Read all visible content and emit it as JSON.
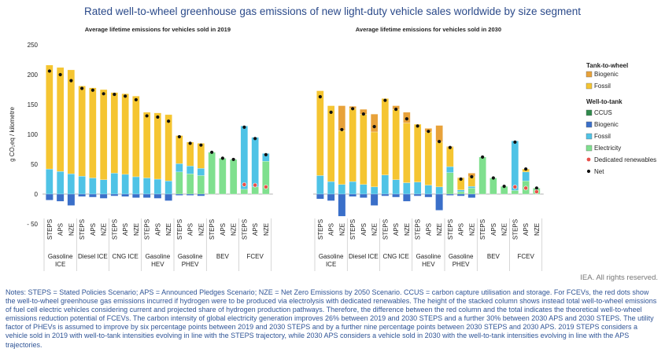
{
  "title": "Rated well-to-wheel greenhouse gas emissions of new light-duty vehicle sales worldwide by size segment",
  "credit": "IEA. All rights reserved.",
  "notes": "Notes: STEPS = Stated Policies Scenario; APS = Announced Pledges Scenario; NZE = Net Zero Emissions by 2050 Scenario. CCUS = carbon capture utilisation and storage. For FCEVs, the red dots show the well-to-wheel greenhouse gas emissions incurred if hydrogen were to be produced via electrolysis with dedicated renewables. The height of the stacked column shows instead total well-to-wheel emissions of fuel cell electric vehicles considering current and projected share of hydrogen production pathways. Therefore, the difference between the red column and the total indicates the theoretical well-to-wheel emissions reduction potential of FCEVs. The carbon intensity of global electricity generation improves 26% between 2019 and 2030 STEPS and a further 30% between 2030 APS and 2030 STEPS. The utility factor of PHEVs is assumed to improve by six percentage points between 2019 and 2030 STEPS and by a further nine percentage points between 2030 STEPS and 2030 APS. 2019 STEPS considers a vehicle sold in 2019 with well-to-tank intensities evolving in line with the STEPS trajectory, while 2030 APS considers a vehicle sold in 2030 with the well-to-tank intensities evolving in line with the APS trajectories.",
  "colors": {
    "ttw_biogenic": "#e8a23a",
    "ttw_fossil": "#f5c531",
    "wtt_ccus": "#2f8a4c",
    "wtt_biogenic": "#3a6fc9",
    "wtt_fossil": "#4fc3e6",
    "wtt_electricity": "#7fe08e",
    "net": "#111111",
    "dedicated": "#e8504a"
  },
  "chart_data": {
    "type": "bar",
    "ylabel": "g CO₂eq / kilometre",
    "ylim": [
      -50,
      250
    ],
    "yticks": [
      -50,
      0,
      50,
      100,
      150,
      200,
      250
    ],
    "scenarios": [
      "STEPS",
      "APS",
      "NZE"
    ],
    "groups": [
      "Gasoline ICE",
      "Diesel ICE",
      "CNG ICE",
      "Gasoline HEV",
      "Gasoline PHEV",
      "BEV",
      "FCEV"
    ],
    "legend": {
      "ttw_title": "Tank-to-wheel",
      "ttw_items": [
        {
          "key": "ttw_biogenic",
          "label": "Biogenic"
        },
        {
          "key": "ttw_fossil",
          "label": "Fossil"
        }
      ],
      "wtt_title": "Well-to-tank",
      "wtt_items": [
        {
          "key": "wtt_ccus",
          "label": "CCUS"
        },
        {
          "key": "wtt_biogenic",
          "label": "Biogenic"
        },
        {
          "key": "wtt_fossil",
          "label": "Fossil"
        },
        {
          "key": "wtt_electricity",
          "label": "Electricity"
        }
      ],
      "dedicated_label": "Dedicated renewables",
      "net_label": "Net"
    },
    "panels": [
      {
        "title": "Average lifetime emissions for vehicles sold in 2019",
        "bars": [
          {
            "wtt_fossil": 42,
            "ttw_fossil": 174,
            "ttw_biogenic": 0,
            "neg_biogenic": -10,
            "net": 206
          },
          {
            "wtt_fossil": 38,
            "ttw_fossil": 174,
            "ttw_biogenic": 0,
            "neg_biogenic": -12,
            "net": 200
          },
          {
            "wtt_fossil": 34,
            "ttw_fossil": 174,
            "ttw_biogenic": 0,
            "neg_biogenic": -19,
            "net": 190
          },
          {
            "wtt_fossil": 30,
            "ttw_fossil": 151,
            "ttw_biogenic": 0,
            "neg_biogenic": -4,
            "net": 177
          },
          {
            "wtt_fossil": 27,
            "ttw_fossil": 151,
            "ttw_biogenic": 0,
            "neg_biogenic": -5,
            "net": 174
          },
          {
            "wtt_fossil": 24,
            "ttw_fossil": 151,
            "ttw_biogenic": 0,
            "neg_biogenic": -7,
            "net": 168
          },
          {
            "wtt_fossil": 35,
            "ttw_fossil": 135,
            "ttw_biogenic": 0,
            "neg_biogenic": -3,
            "net": 167
          },
          {
            "wtt_fossil": 33,
            "ttw_fossil": 135,
            "ttw_biogenic": 0,
            "neg_biogenic": -4,
            "net": 164
          },
          {
            "wtt_fossil": 29,
            "ttw_fossil": 135,
            "ttw_biogenic": 0,
            "neg_biogenic": -6,
            "net": 158
          },
          {
            "wtt_fossil": 27,
            "ttw_fossil": 110,
            "ttw_biogenic": 0,
            "neg_biogenic": -6,
            "net": 131
          },
          {
            "wtt_fossil": 25,
            "ttw_fossil": 111,
            "ttw_biogenic": 0,
            "neg_biogenic": -7,
            "net": 129
          },
          {
            "wtt_fossil": 22,
            "ttw_fossil": 111,
            "ttw_biogenic": 0,
            "neg_biogenic": -11,
            "net": 122
          },
          {
            "wtt_electricity": 37,
            "wtt_fossil": 14,
            "ttw_fossil": 47,
            "ttw_biogenic": 0,
            "neg_biogenic": -2,
            "net": 96
          },
          {
            "wtt_electricity": 34,
            "wtt_fossil": 13,
            "ttw_fossil": 40,
            "ttw_biogenic": 0,
            "neg_biogenic": -2,
            "net": 85
          },
          {
            "wtt_electricity": 31,
            "wtt_fossil": 12,
            "ttw_fossil": 42,
            "ttw_biogenic": 0,
            "neg_biogenic": -3,
            "net": 82
          },
          {
            "wtt_electricity": 70,
            "net": 70
          },
          {
            "wtt_electricity": 60,
            "net": 60
          },
          {
            "wtt_electricity": 58,
            "net": 58
          },
          {
            "wtt_electricity": 8,
            "wtt_fossil": 106,
            "net": 112,
            "dedicated": 16
          },
          {
            "wtt_electricity": 12,
            "wtt_fossil": 83,
            "net": 93,
            "dedicated": 15
          },
          {
            "wtt_electricity": 55,
            "wtt_fossil": 13,
            "net": 66,
            "dedicated": 12
          }
        ]
      },
      {
        "title": "Average lifetime emissions for vehicles sold in 2030",
        "bars": [
          {
            "wtt_fossil": 31,
            "ttw_fossil": 142,
            "ttw_biogenic": 0,
            "neg_biogenic": -8,
            "net": 163
          },
          {
            "wtt_fossil": 21,
            "ttw_fossil": 127,
            "ttw_biogenic": 0,
            "neg_biogenic": -11,
            "net": 137
          },
          {
            "wtt_fossil": 16,
            "ttw_fossil": 90,
            "ttw_biogenic": 42,
            "neg_biogenic": -37,
            "net": 108
          },
          {
            "wtt_fossil": 21,
            "ttw_fossil": 122,
            "ttw_biogenic": 4,
            "neg_biogenic": -4,
            "net": 143
          },
          {
            "wtt_fossil": 16,
            "ttw_fossil": 118,
            "ttw_biogenic": 8,
            "neg_biogenic": -6,
            "net": 134
          },
          {
            "wtt_fossil": 12,
            "ttw_fossil": 92,
            "ttw_biogenic": 30,
            "neg_biogenic": -19,
            "net": 113
          },
          {
            "wtt_fossil": 32,
            "ttw_fossil": 128,
            "ttw_biogenic": 0,
            "neg_biogenic": -3,
            "net": 157
          },
          {
            "wtt_fossil": 24,
            "ttw_fossil": 118,
            "ttw_biogenic": 6,
            "neg_biogenic": -5,
            "net": 142
          },
          {
            "wtt_fossil": 19,
            "ttw_fossil": 100,
            "ttw_biogenic": 18,
            "neg_biogenic": -12,
            "net": 126
          },
          {
            "wtt_fossil": 20,
            "ttw_fossil": 97,
            "ttw_biogenic": 0,
            "neg_biogenic": -3,
            "net": 114
          },
          {
            "wtt_fossil": 15,
            "ttw_fossil": 89,
            "ttw_biogenic": 6,
            "neg_biogenic": -5,
            "net": 105
          },
          {
            "wtt_fossil": 12,
            "ttw_fossil": 75,
            "ttw_biogenic": 28,
            "neg_biogenic": -27,
            "net": 88
          },
          {
            "wtt_electricity": 36,
            "wtt_fossil": 10,
            "ttw_fossil": 33,
            "ttw_biogenic": 1,
            "neg_biogenic": -2,
            "net": 78
          },
          {
            "wtt_electricity": 4,
            "wtt_fossil": 3,
            "ttw_fossil": 20,
            "ttw_biogenic": 1,
            "neg_biogenic": -3,
            "net": 25
          },
          {
            "wtt_electricity": 10,
            "wtt_fossil": 3,
            "ttw_fossil": 16,
            "ttw_biogenic": 6,
            "neg_biogenic": -6,
            "net": 29
          },
          {
            "wtt_electricity": 62,
            "net": 62
          },
          {
            "wtt_electricity": 27,
            "net": 27
          },
          {
            "wtt_electricity": 13,
            "net": 13
          },
          {
            "wtt_electricity": 6,
            "wtt_fossil": 83,
            "net": 87,
            "dedicated": 12
          },
          {
            "wtt_electricity": 22,
            "wtt_fossil": 15,
            "ttw_fossil": 5,
            "net": 42,
            "dedicated": 10
          },
          {
            "wtt_electricity": 10,
            "wtt_fossil": 0,
            "net": 10,
            "dedicated": 4
          }
        ]
      }
    ]
  }
}
